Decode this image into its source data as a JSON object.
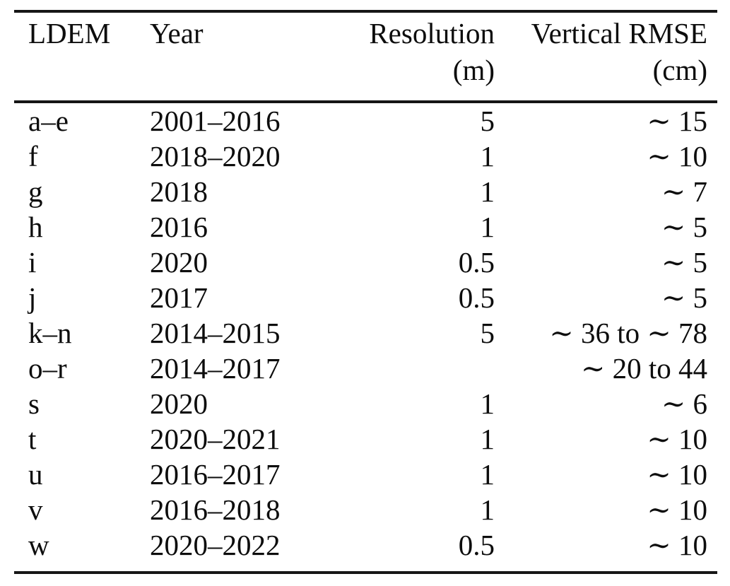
{
  "table": {
    "columns": [
      {
        "id": "ldem",
        "label": "LDEM",
        "align": "left"
      },
      {
        "id": "year",
        "label": "Year",
        "align": "left"
      },
      {
        "id": "resolution",
        "label": "Resolution (m)",
        "align": "right"
      },
      {
        "id": "vertical_rmse",
        "label": "Vertical RMSE",
        "unit": "(cm)",
        "align": "right"
      }
    ],
    "rows": [
      {
        "ldem": "a–e",
        "year": "2001–2016",
        "resolution": "5",
        "vertical_rmse": "∼ 15"
      },
      {
        "ldem": "f",
        "year": "2018–2020",
        "resolution": "1",
        "vertical_rmse": "∼ 10"
      },
      {
        "ldem": "g",
        "year": "2018",
        "resolution": "1",
        "vertical_rmse": "∼ 7"
      },
      {
        "ldem": "h",
        "year": "2016",
        "resolution": "1",
        "vertical_rmse": "∼ 5"
      },
      {
        "ldem": "i",
        "year": "2020",
        "resolution": "0.5",
        "vertical_rmse": "∼ 5"
      },
      {
        "ldem": "j",
        "year": "2017",
        "resolution": "0.5",
        "vertical_rmse": "∼ 5"
      },
      {
        "ldem": "k–n",
        "year": "2014–2015",
        "resolution": "5",
        "vertical_rmse": "∼ 36 to ∼ 78"
      },
      {
        "ldem": "o–r",
        "year": "2014–2017",
        "resolution": "",
        "vertical_rmse": "∼ 20 to 44"
      },
      {
        "ldem": "s",
        "year": "2020",
        "resolution": "1",
        "vertical_rmse": "∼ 6"
      },
      {
        "ldem": "t",
        "year": "2020–2021",
        "resolution": "1",
        "vertical_rmse": "∼ 10"
      },
      {
        "ldem": "u",
        "year": "2016–2017",
        "resolution": "1",
        "vertical_rmse": "∼ 10"
      },
      {
        "ldem": "v",
        "year": "2016–2018",
        "resolution": "1",
        "vertical_rmse": "∼ 10"
      },
      {
        "ldem": "w",
        "year": "2020–2022",
        "resolution": "0.5",
        "vertical_rmse": "∼ 10"
      }
    ],
    "rule_color": "#161616",
    "text_color": "#0d0d0d",
    "background_color": "#ffffff"
  }
}
